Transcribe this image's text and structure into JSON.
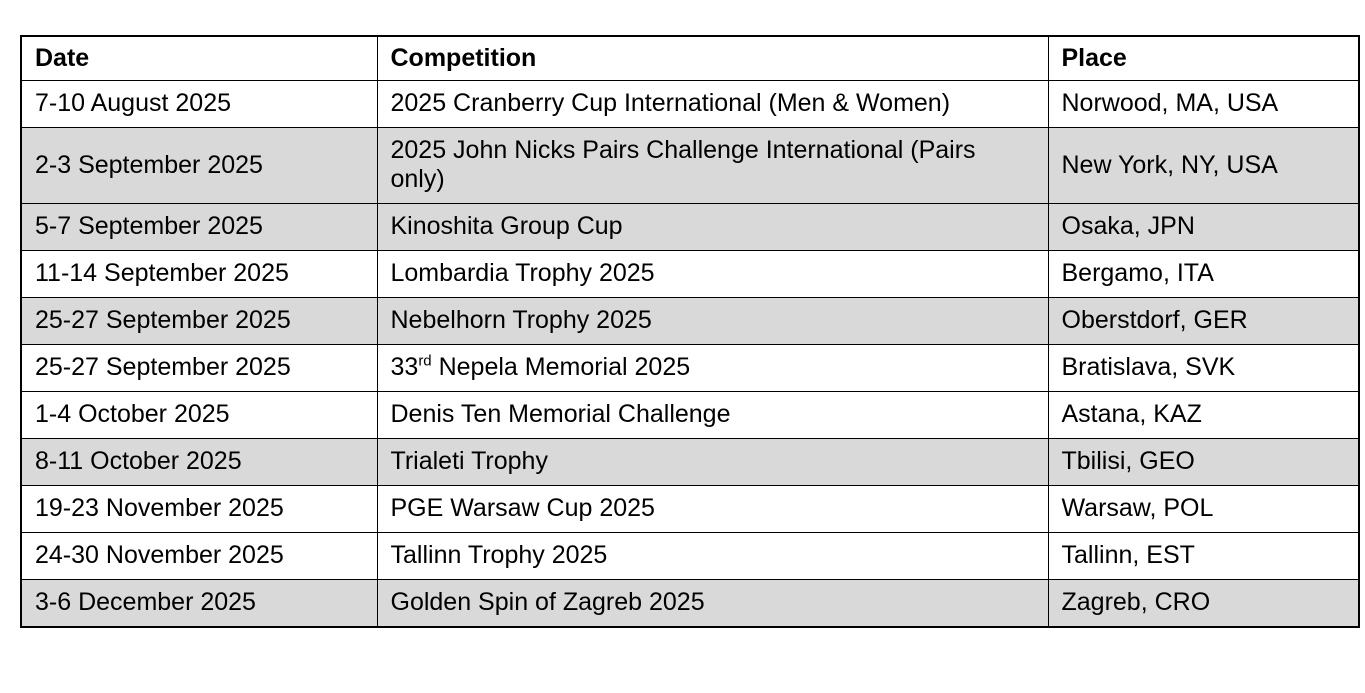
{
  "table": {
    "columns": [
      {
        "key": "date",
        "label": "Date"
      },
      {
        "key": "competition",
        "label": "Competition"
      },
      {
        "key": "place",
        "label": "Place"
      }
    ],
    "rows": [
      {
        "date": "7-10 August 2025",
        "competition": "2025 Cranberry Cup International (Men & Women)",
        "place": "Norwood, MA, USA",
        "shaded": false
      },
      {
        "date": "2-3 September 2025",
        "competition": "2025 John Nicks Pairs Challenge International (Pairs only)",
        "place": "New York, NY, USA",
        "shaded": true
      },
      {
        "date": "5-7 September 2025",
        "competition": "Kinoshita Group Cup",
        "place": "Osaka, JPN",
        "shaded": true
      },
      {
        "date": "11-14 September 2025",
        "competition": "Lombardia Trophy 2025",
        "place": "Bergamo, ITA",
        "shaded": false
      },
      {
        "date": "25-27 September 2025",
        "competition": "Nebelhorn Trophy 2025",
        "place": "Oberstdorf, GER",
        "shaded": true
      },
      {
        "date": "25-27 September 2025",
        "competition": [
          {
            "t": "33"
          },
          {
            "t": "rd",
            "sup": true
          },
          {
            "t": " Nepela Memorial 2025"
          }
        ],
        "place": "Bratislava, SVK",
        "shaded": false
      },
      {
        "date": "1-4 October 2025",
        "competition": "Denis Ten Memorial Challenge",
        "place": "Astana, KAZ",
        "shaded": false
      },
      {
        "date": "8-11 October 2025",
        "competition": "Trialeti Trophy",
        "place": "Tbilisi, GEO",
        "shaded": true
      },
      {
        "date": "19-23 November 2025",
        "competition": "PGE Warsaw Cup 2025",
        "place": "Warsaw, POL",
        "shaded": false
      },
      {
        "date": "24-30 November 2025",
        "competition": "Tallinn Trophy 2025",
        "place": "Tallinn, EST",
        "shaded": false
      },
      {
        "date": "3-6 December 2025",
        "competition": "Golden Spin of Zagreb 2025",
        "place": "Zagreb, CRO",
        "shaded": true
      }
    ],
    "colors": {
      "shaded_row_bg": "#d9d9d9",
      "border": "#000000",
      "text": "#000000",
      "background": "#ffffff"
    }
  }
}
